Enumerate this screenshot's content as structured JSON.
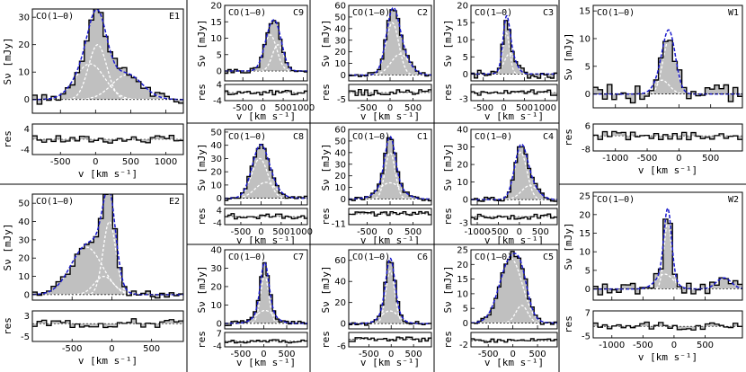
{
  "figure": {
    "line_label": "CO(1–0)",
    "velocity_axis_label": "v [km s⁻¹]",
    "flux_axis_label": "Sν [mJy]",
    "residual_axis_label": "res"
  },
  "colors": {
    "histogram": "#000000",
    "fill": "#c0c0c0",
    "total_fit": "#1a1acc",
    "components": "#ffffff",
    "baseline": "#000000"
  },
  "chart_data": [
    {
      "id": "E1",
      "type": "line",
      "title": "CO(1–0)",
      "label": "E1",
      "xlim": [
        -900,
        1250
      ],
      "ylim": [
        -5,
        33
      ],
      "rlim": [
        -6,
        6
      ],
      "xticks": [
        -500,
        0,
        500,
        1000
      ],
      "yticks": [
        0,
        10,
        20,
        30
      ],
      "rticks": [
        -4,
        4
      ],
      "xtick_labels": true,
      "components": [
        {
          "center": 30,
          "width": 130,
          "amp": 20
        },
        {
          "center": -80,
          "width": 210,
          "amp": 13
        },
        {
          "center": 450,
          "width": 220,
          "amp": 9
        }
      ],
      "noise": 2.0,
      "resamp": 1.6
    },
    {
      "id": "C9",
      "type": "line",
      "title": "CO(1–0)",
      "label": "C9",
      "xlim": [
        -950,
        1100
      ],
      "ylim": [
        -3,
        20
      ],
      "rlim": [
        -4,
        4
      ],
      "xticks": [
        -500,
        0,
        500,
        1000
      ],
      "yticks": [
        0,
        5,
        10,
        15,
        20
      ],
      "rticks": [
        -4,
        4
      ],
      "xtick_labels": true,
      "components": [
        {
          "center": 180,
          "width": 160,
          "amp": 11
        },
        {
          "center": 370,
          "width": 140,
          "amp": 8
        }
      ],
      "noise": 0.9,
      "resamp": 1.2
    },
    {
      "id": "C2",
      "type": "line",
      "title": "CO(1–0)",
      "label": "C2",
      "xlim": [
        -900,
        900
      ],
      "ylim": [
        -5,
        60
      ],
      "rlim": [
        -6,
        6
      ],
      "xticks": [
        -500,
        0,
        500
      ],
      "yticks": [
        0,
        10,
        20,
        30,
        40,
        50,
        60
      ],
      "rticks": [
        -5
      ],
      "xtick_labels": true,
      "components": [
        {
          "center": 50,
          "width": 140,
          "amp": 45
        },
        {
          "center": 220,
          "width": 200,
          "amp": 18
        }
      ],
      "noise": 2.0,
      "resamp": 2.5
    },
    {
      "id": "C3",
      "type": "line",
      "title": "CO(1–0)",
      "label": "C3",
      "xlim": [
        -800,
        1300
      ],
      "ylim": [
        -2,
        20
      ],
      "rlim": [
        -4,
        4
      ],
      "xticks": [
        -500,
        0,
        500,
        1000
      ],
      "yticks": [
        0,
        5,
        10,
        15,
        20
      ],
      "rticks": [
        -3
      ],
      "xtick_labels": true,
      "components": [
        {
          "center": 60,
          "width": 80,
          "amp": 12
        },
        {
          "center": 150,
          "width": 140,
          "amp": 6
        }
      ],
      "noise": 1.3,
      "resamp": 1.4
    },
    {
      "id": "W1",
      "type": "line",
      "title": "CO(1–0)",
      "label": "W1",
      "xlim": [
        -1350,
        1000
      ],
      "ylim": [
        -2.5,
        16
      ],
      "rlim": [
        -9,
        7
      ],
      "xticks": [
        -1000,
        -500,
        0,
        500
      ],
      "yticks": [
        0,
        5,
        10,
        15
      ],
      "rticks": [
        -8,
        6
      ],
      "xtick_labels": true,
      "components": [
        {
          "center": -150,
          "width": 100,
          "amp": 10
        },
        {
          "center": -270,
          "width": 120,
          "amp": 2.5
        }
      ],
      "noise": 1.8,
      "resamp": 2.5
    },
    {
      "id": "C8",
      "type": "line",
      "title": "CO(1–0)",
      "label": "C8",
      "xlim": [
        -900,
        1150
      ],
      "ylim": [
        -5,
        52
      ],
      "rlim": [
        -5,
        5
      ],
      "xticks": [
        -500,
        0,
        500,
        1000
      ],
      "yticks": [
        0,
        10,
        20,
        30,
        40,
        50
      ],
      "rticks": [
        -4,
        4
      ],
      "xtick_labels": true,
      "components": [
        {
          "center": -30,
          "width": 200,
          "amp": 30
        },
        {
          "center": 120,
          "width": 260,
          "amp": 12
        }
      ],
      "noise": 2.0,
      "resamp": 2.0
    },
    {
      "id": "C1",
      "type": "line",
      "title": "CO(1–0)",
      "label": "C1",
      "xlim": [
        -900,
        900
      ],
      "ylim": [
        -5,
        60
      ],
      "rlim": [
        -12,
        6
      ],
      "xticks": [
        -500,
        0,
        500
      ],
      "yticks": [
        0,
        10,
        20,
        30,
        40,
        50,
        60
      ],
      "rticks": [
        -11
      ],
      "xtick_labels": true,
      "components": [
        {
          "center": 0,
          "width": 110,
          "amp": 40
        },
        {
          "center": 0,
          "width": 250,
          "amp": 14
        }
      ],
      "noise": 1.5,
      "resamp": 2.5
    },
    {
      "id": "C4",
      "type": "line",
      "title": "CO(1–0)",
      "label": "C4",
      "xlim": [
        -1150,
        900
      ],
      "ylim": [
        -3,
        40
      ],
      "rlim": [
        -4,
        4
      ],
      "xticks": [
        -1000,
        -500,
        0,
        500
      ],
      "yticks": [
        0,
        10,
        20,
        30,
        40
      ],
      "rticks": [
        -3
      ],
      "xtick_labels": true,
      "components": [
        {
          "center": 30,
          "width": 150,
          "amp": 27
        },
        {
          "center": 250,
          "width": 200,
          "amp": 8
        }
      ],
      "noise": 1.5,
      "resamp": 1.5
    },
    {
      "id": "E2",
      "type": "line",
      "title": "CO(1–0)",
      "label": "E2",
      "xlim": [
        -1000,
        900
      ],
      "ylim": [
        -3,
        55
      ],
      "rlim": [
        -7,
        5
      ],
      "xticks": [
        -500,
        0,
        500
      ],
      "yticks": [
        0,
        10,
        20,
        30,
        40,
        50
      ],
      "rticks": [
        -5,
        3
      ],
      "xtick_labels": true,
      "components": [
        {
          "center": -30,
          "width": 80,
          "amp": 40
        },
        {
          "center": -320,
          "width": 200,
          "amp": 26
        },
        {
          "center": -100,
          "width": 120,
          "amp": 10
        }
      ],
      "noise": 2.2,
      "resamp": 2.0
    },
    {
      "id": "C7",
      "type": "line",
      "title": "CO(1–0)",
      "label": "C7",
      "xlim": [
        -850,
        950
      ],
      "ylim": [
        -3,
        40
      ],
      "rlim": [
        -5,
        8
      ],
      "xticks": [
        -500,
        0,
        500
      ],
      "yticks": [
        0,
        10,
        20,
        30,
        40
      ],
      "rticks": [
        -4,
        7
      ],
      "xtick_labels": true,
      "components": [
        {
          "center": 20,
          "width": 90,
          "amp": 26
        },
        {
          "center": 30,
          "width": 200,
          "amp": 7
        }
      ],
      "noise": 1.2,
      "resamp": 1.5
    },
    {
      "id": "C6",
      "type": "line",
      "title": "CO(1–0)",
      "label": "C6",
      "xlim": [
        -950,
        900
      ],
      "ylim": [
        -5,
        70
      ],
      "rlim": [
        -7,
        6
      ],
      "xticks": [
        -500,
        0,
        500
      ],
      "yticks": [
        0,
        20,
        40,
        60
      ],
      "rticks": [
        -6
      ],
      "xtick_labels": true,
      "components": [
        {
          "center": -20,
          "width": 100,
          "amp": 50
        },
        {
          "center": -30,
          "width": 200,
          "amp": 12
        }
      ],
      "noise": 2.0,
      "resamp": 2.5
    },
    {
      "id": "C5",
      "type": "line",
      "title": "CO(1–0)",
      "label": "C5",
      "xlim": [
        -850,
        900
      ],
      "ylim": [
        -2,
        25
      ],
      "rlim": [
        -3,
        4
      ],
      "xticks": [
        -500,
        0,
        500
      ],
      "yticks": [
        0,
        5,
        10,
        15,
        20,
        25
      ],
      "rticks": [
        -2
      ],
      "xtick_labels": true,
      "components": [
        {
          "center": -40,
          "width": 230,
          "amp": 22
        },
        {
          "center": 180,
          "width": 120,
          "amp": 6
        }
      ],
      "noise": 1.0,
      "resamp": 1.0
    },
    {
      "id": "W2",
      "type": "line",
      "title": "CO(1–0)",
      "label": "W2",
      "xlim": [
        -1300,
        1100
      ],
      "ylim": [
        -3,
        26
      ],
      "rlim": [
        -6,
        8
      ],
      "xticks": [
        -1000,
        -500,
        0,
        500
      ],
      "yticks": [
        0,
        5,
        10,
        15,
        20,
        25
      ],
      "rticks": [
        -5,
        7
      ],
      "xtick_labels": true,
      "components": [
        {
          "center": -100,
          "width": 60,
          "amp": 18
        },
        {
          "center": -150,
          "width": 140,
          "amp": 4
        },
        {
          "center": 800,
          "width": 120,
          "amp": 3
        }
      ],
      "noise": 1.6,
      "resamp": 2.2
    }
  ]
}
